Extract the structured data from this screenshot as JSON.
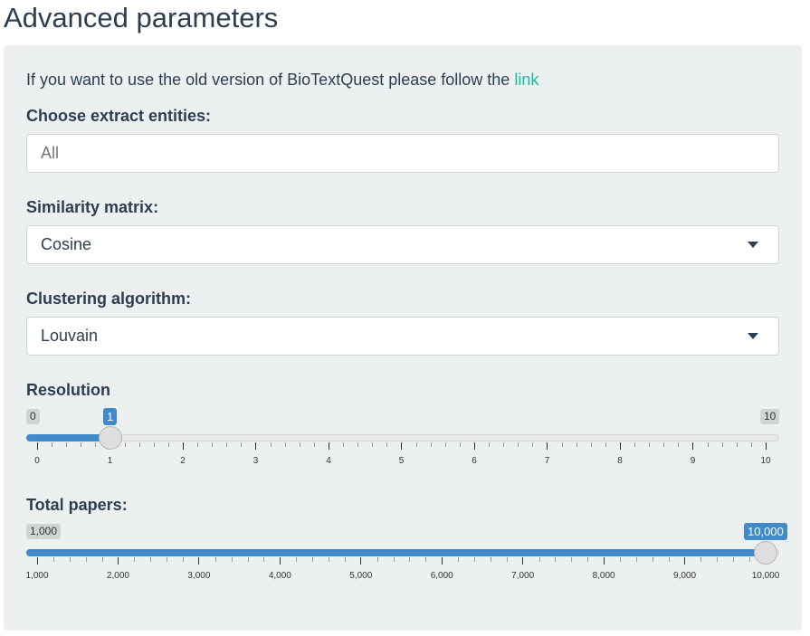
{
  "header": {
    "title": "Advanced parameters"
  },
  "panel": {
    "note": {
      "text": "If you want to use the old version of BioTextQuest please follow the",
      "link": "link"
    },
    "fields": [
      {
        "label": "Choose extract entities:",
        "placeholder": "All"
      },
      {
        "label": "Similarity matrix:",
        "value": "Cosine"
      },
      {
        "label": "Clustering algorithm:",
        "value": "Louvain"
      }
    ],
    "sliders": [
      {
        "label": "Resolution",
        "min_label": 0,
        "max_label": 10,
        "value": 1,
        "ticks": [
          0,
          1,
          2,
          3,
          4,
          5,
          6,
          7,
          8,
          9,
          10
        ]
      },
      {
        "label": "Total papers:",
        "min_label": {
          "value": 1000,
          "label": "1,000"
        },
        "value": {
          "value": 10000,
          "label": "10,000"
        },
        "ticks": [
          {
            "value": 1000,
            "label": "1,000"
          },
          {
            "value": 2000,
            "label": "2,000"
          },
          {
            "value": 3000,
            "label": "3,000"
          },
          {
            "value": 4000,
            "label": "4,000"
          },
          {
            "value": 5000,
            "label": "5,000"
          },
          {
            "value": 6000,
            "label": "6,000"
          },
          {
            "value": 7000,
            "label": "7,000"
          },
          {
            "value": 8000,
            "label": "8,000"
          },
          {
            "value": 9000,
            "label": "9,000"
          },
          {
            "value": 10000,
            "label": "10,000"
          }
        ]
      }
    ]
  }
}
